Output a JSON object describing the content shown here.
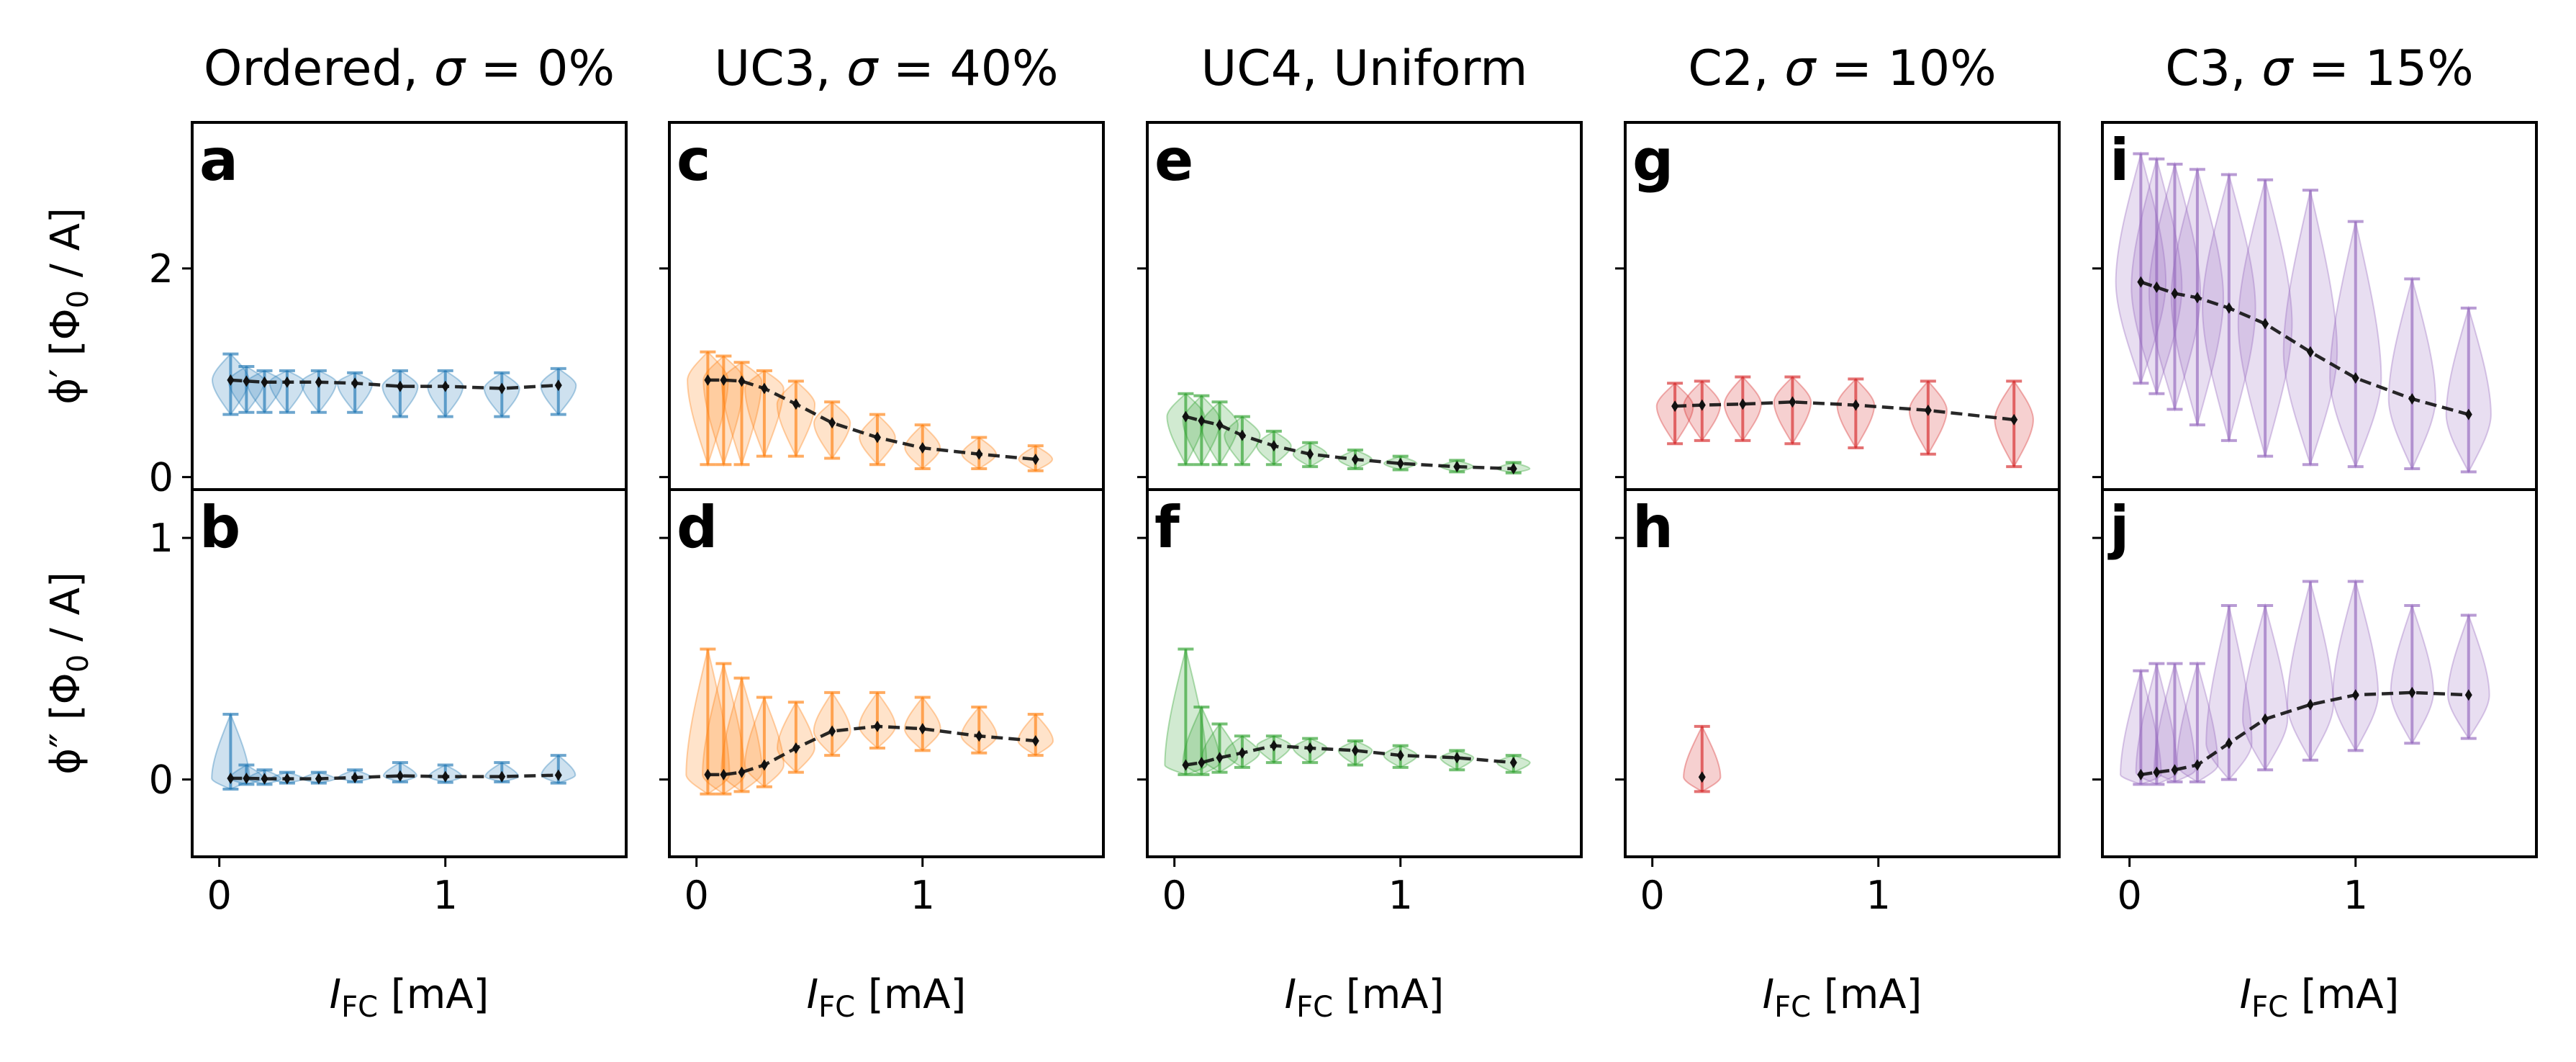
{
  "chart_data": {
    "type": "line",
    "description_free": true,
    "columns": [
      {
        "title_prefix": "Ordered, ",
        "title_sigma": "σ",
        "title_suffix": " = 0%",
        "color": "#1f77b4",
        "top": {
          "label": "a",
          "x": [
            0.05,
            0.12,
            0.2,
            0.3,
            0.44,
            0.6,
            0.8,
            1.0,
            1.25,
            1.5
          ],
          "y": [
            0.93,
            0.92,
            0.91,
            0.91,
            0.91,
            0.9,
            0.87,
            0.87,
            0.85,
            0.88
          ],
          "lo": [
            0.6,
            0.62,
            0.62,
            0.62,
            0.62,
            0.62,
            0.58,
            0.58,
            0.58,
            0.6
          ],
          "hi": [
            1.18,
            1.06,
            1.02,
            1.02,
            1.02,
            1.0,
            1.02,
            1.02,
            1.0,
            1.04
          ]
        },
        "bottom": {
          "label": "b",
          "x": [
            0.05,
            0.12,
            0.2,
            0.3,
            0.44,
            0.6,
            0.8,
            1.0,
            1.25,
            1.5
          ],
          "y": [
            0.005,
            0.005,
            0.003,
            0.003,
            0.003,
            0.008,
            0.015,
            0.012,
            0.012,
            0.018
          ],
          "lo": [
            -0.04,
            -0.02,
            -0.02,
            -0.015,
            -0.015,
            -0.01,
            -0.01,
            -0.012,
            -0.01,
            -0.015
          ],
          "hi": [
            0.27,
            0.06,
            0.04,
            0.03,
            0.03,
            0.04,
            0.07,
            0.06,
            0.07,
            0.1
          ]
        }
      },
      {
        "title_prefix": "UC3, ",
        "title_sigma": "σ",
        "title_suffix": " = 40%",
        "color": "#ff7f0e",
        "top": {
          "label": "c",
          "x": [
            0.05,
            0.12,
            0.2,
            0.3,
            0.44,
            0.6,
            0.8,
            1.0,
            1.25,
            1.5
          ],
          "y": [
            0.93,
            0.93,
            0.92,
            0.85,
            0.7,
            0.52,
            0.38,
            0.28,
            0.22,
            0.17
          ],
          "lo": [
            0.12,
            0.12,
            0.12,
            0.2,
            0.2,
            0.18,
            0.12,
            0.08,
            0.08,
            0.06
          ],
          "hi": [
            1.2,
            1.16,
            1.1,
            1.02,
            0.92,
            0.72,
            0.6,
            0.5,
            0.38,
            0.3
          ]
        },
        "bottom": {
          "label": "d",
          "x": [
            0.05,
            0.12,
            0.2,
            0.3,
            0.44,
            0.6,
            0.8,
            1.0,
            1.25,
            1.5
          ],
          "y": [
            0.02,
            0.02,
            0.03,
            0.06,
            0.13,
            0.2,
            0.22,
            0.21,
            0.18,
            0.16
          ],
          "lo": [
            -0.06,
            -0.06,
            -0.05,
            -0.03,
            0.03,
            0.1,
            0.13,
            0.12,
            0.11,
            0.1
          ],
          "hi": [
            0.54,
            0.48,
            0.42,
            0.34,
            0.32,
            0.36,
            0.36,
            0.34,
            0.3,
            0.27
          ]
        }
      },
      {
        "title_prefix": "UC4, Uniform",
        "title_sigma": "",
        "title_suffix": "",
        "color": "#2ca02c",
        "top": {
          "label": "e",
          "x": [
            0.05,
            0.12,
            0.2,
            0.3,
            0.44,
            0.6,
            0.8,
            1.0,
            1.25,
            1.5
          ],
          "y": [
            0.58,
            0.54,
            0.5,
            0.4,
            0.3,
            0.22,
            0.17,
            0.13,
            0.1,
            0.08
          ],
          "lo": [
            0.12,
            0.12,
            0.12,
            0.12,
            0.12,
            0.1,
            0.08,
            0.07,
            0.05,
            0.04
          ],
          "hi": [
            0.8,
            0.78,
            0.72,
            0.58,
            0.44,
            0.33,
            0.26,
            0.2,
            0.16,
            0.14
          ]
        },
        "bottom": {
          "label": "f",
          "x": [
            0.05,
            0.12,
            0.2,
            0.3,
            0.44,
            0.6,
            0.8,
            1.0,
            1.25,
            1.5
          ],
          "y": [
            0.06,
            0.07,
            0.09,
            0.11,
            0.14,
            0.13,
            0.12,
            0.1,
            0.09,
            0.07
          ],
          "lo": [
            0.02,
            0.02,
            0.03,
            0.05,
            0.07,
            0.07,
            0.06,
            0.05,
            0.04,
            0.03
          ],
          "hi": [
            0.54,
            0.3,
            0.23,
            0.18,
            0.18,
            0.17,
            0.16,
            0.14,
            0.12,
            0.1
          ]
        }
      },
      {
        "title_prefix": "C2, ",
        "title_sigma": "σ",
        "title_suffix": " = 10%",
        "color": "#d62728",
        "top": {
          "label": "g",
          "x": [
            0.1,
            0.22,
            0.4,
            0.62,
            0.9,
            1.22,
            1.6
          ],
          "y": [
            0.68,
            0.69,
            0.7,
            0.72,
            0.69,
            0.64,
            0.55
          ],
          "lo": [
            0.32,
            0.35,
            0.35,
            0.32,
            0.28,
            0.22,
            0.1
          ],
          "hi": [
            0.9,
            0.92,
            0.96,
            0.96,
            0.94,
            0.92,
            0.92
          ]
        },
        "bottom": {
          "label": "h",
          "x": [
            0.22
          ],
          "y": [
            0.01
          ],
          "lo": [
            -0.05
          ],
          "hi": [
            0.22
          ]
        }
      },
      {
        "title_prefix": "C3, ",
        "title_sigma": "σ",
        "title_suffix": " = 15%",
        "color": "#9467bd",
        "top": {
          "label": "i",
          "x": [
            0.05,
            0.12,
            0.2,
            0.3,
            0.44,
            0.6,
            0.8,
            1.0,
            1.25,
            1.5
          ],
          "y": [
            1.87,
            1.82,
            1.76,
            1.72,
            1.62,
            1.47,
            1.2,
            0.95,
            0.75,
            0.6
          ],
          "lo": [
            0.9,
            0.8,
            0.65,
            0.5,
            0.35,
            0.2,
            0.12,
            0.1,
            0.08,
            0.05
          ],
          "hi": [
            3.1,
            3.05,
            3.0,
            2.95,
            2.9,
            2.85,
            2.75,
            2.45,
            1.9,
            1.62
          ]
        },
        "bottom": {
          "label": "j",
          "x": [
            0.05,
            0.12,
            0.2,
            0.3,
            0.44,
            0.6,
            0.8,
            1.0,
            1.25,
            1.5
          ],
          "y": [
            0.02,
            0.03,
            0.04,
            0.06,
            0.15,
            0.25,
            0.31,
            0.35,
            0.36,
            0.35
          ],
          "lo": [
            -0.02,
            -0.02,
            -0.01,
            -0.01,
            0.0,
            0.04,
            0.08,
            0.12,
            0.15,
            0.17
          ],
          "hi": [
            0.45,
            0.48,
            0.48,
            0.48,
            0.72,
            0.72,
            0.82,
            0.82,
            0.72,
            0.68
          ]
        }
      }
    ],
    "axes": {
      "x_range": [
        -0.12,
        1.8
      ],
      "x_ticks": [
        0,
        1
      ],
      "x_tick_labels": [
        "0",
        "1"
      ],
      "top_y_range": [
        -0.12,
        3.4
      ],
      "top_y_ticks": [
        0,
        2
      ],
      "top_y_tick_labels": [
        "0",
        "2"
      ],
      "bottom_y_range": [
        -0.32,
        1.2
      ],
      "bottom_y_ticks": [
        0,
        1
      ],
      "bottom_y_tick_labels": [
        "0",
        "1"
      ]
    },
    "xlabel": {
      "symbol": "I",
      "subscript": "FC",
      "unit": " [mA]"
    },
    "ylabel_top": {
      "symbol": "ϕ′ [Φ",
      "subscript": "0",
      "unit": " / A]"
    },
    "ylabel_bottom": {
      "symbol": "ϕ″ [Φ",
      "subscript": "0",
      "unit": " / A]"
    },
    "mean_line": {
      "color": "#111111",
      "style": "dashed"
    }
  }
}
